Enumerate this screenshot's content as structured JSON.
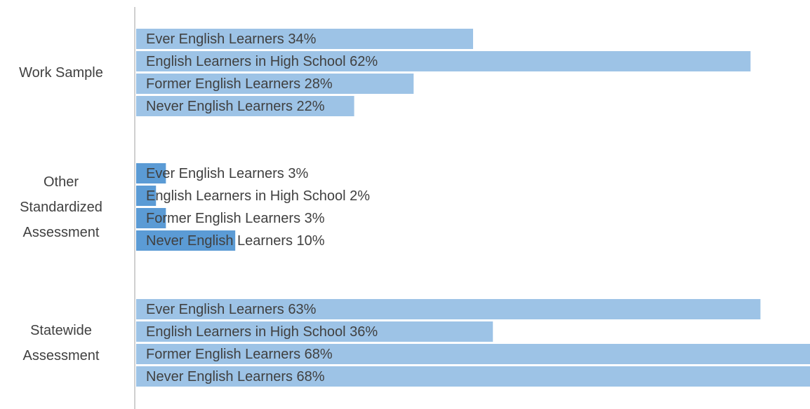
{
  "chart_data": {
    "type": "hbar",
    "categories": [
      "Work Sample",
      "Other Standardized Assessment",
      "Statewide Assessment"
    ],
    "series": [
      {
        "name": "Ever English Learners",
        "colors": [
          "#9dc3e6",
          "#5b9bd5",
          "#9dc3e6"
        ],
        "values": [
          34,
          3,
          63
        ],
        "value_labels": [
          "Ever English Learners 34%",
          "Ever English Learners 3%",
          "Ever English Learners 63%"
        ]
      },
      {
        "name": "English Learners in High School",
        "colors": [
          "#9dc3e6",
          "#5b9bd5",
          "#9dc3e6"
        ],
        "values": [
          62,
          2,
          36
        ],
        "value_labels": [
          "English Learners in High School 62%",
          "English Learners in High School 2%",
          "English Learners in High School 36%"
        ]
      },
      {
        "name": "Former English Learners",
        "colors": [
          "#9dc3e6",
          "#5b9bd5",
          "#9dc3e6"
        ],
        "values": [
          28,
          3,
          68
        ],
        "value_labels": [
          "Former English Learners 28%",
          "Former English Learners 3%",
          "Former English Learners 68%"
        ]
      },
      {
        "name": "Never English Learners",
        "colors": [
          "#9dc3e6",
          "#5b9bd5",
          "#9dc3e6"
        ],
        "values": [
          22,
          10,
          68
        ],
        "value_labels": [
          "Never English Learners 22%",
          "Never English Learners 10%",
          "Never English Learners 68%"
        ]
      }
    ],
    "xlim": [
      0,
      68
    ]
  }
}
